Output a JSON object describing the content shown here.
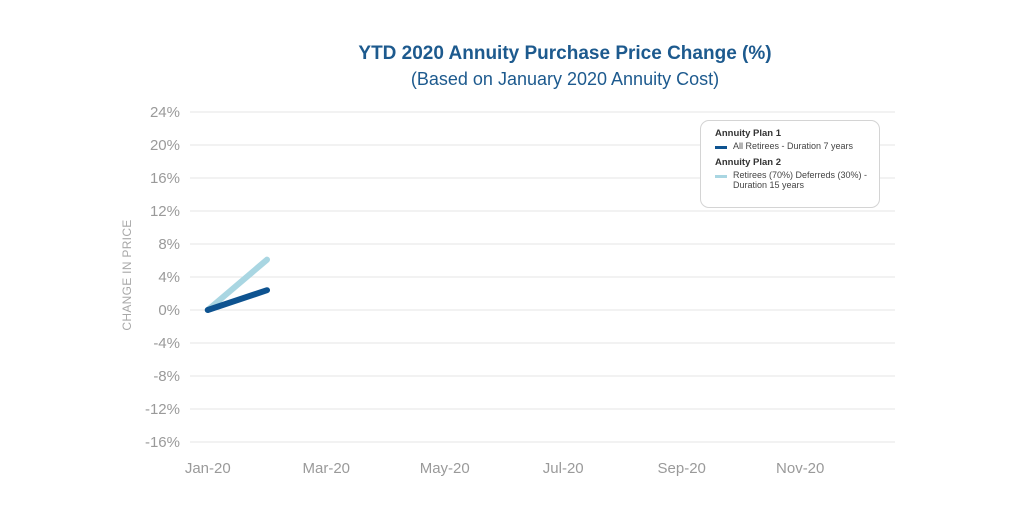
{
  "chart_data": {
    "type": "line",
    "title": "YTD 2020 Annuity Purchase Price Change (%)",
    "subtitle": "(Based on January 2020 Annuity Cost)",
    "ylabel": "CHANGE IN PRICE",
    "xlabel": "",
    "x_tick_labels": [
      "Jan-20",
      "Mar-20",
      "May-20",
      "Jul-20",
      "Sep-20",
      "Nov-20"
    ],
    "x_tick_index": [
      0,
      2,
      4,
      6,
      8,
      10
    ],
    "xlim": [
      -0.3,
      11.6
    ],
    "ylim": [
      -16,
      24
    ],
    "yticks": [
      24,
      20,
      16,
      12,
      8,
      4,
      0,
      -4,
      -8,
      -12,
      -16
    ],
    "ytick_labels": [
      "24%",
      "20%",
      "16%",
      "12%",
      "8%",
      "4%",
      "0%",
      "-4%",
      "-8%",
      "-12%",
      "-16%"
    ],
    "grid": true,
    "legend_position": "top-right",
    "series": [
      {
        "name": "All Retirees - Duration 7 years",
        "group": "Annuity Plan 1",
        "color": "#0e5390",
        "x": [
          0,
          1
        ],
        "values": [
          0,
          2.4
        ]
      },
      {
        "name": "Retirees (70%) Deferreds (30%) - Duration 15 years",
        "group": "Annuity Plan 2",
        "color": "#a9d6e2",
        "x": [
          0,
          1
        ],
        "values": [
          0,
          6.1
        ]
      }
    ]
  },
  "legend": {
    "group1": "Annuity Plan 1",
    "item1": "All Retirees - Duration 7 years",
    "group2": "Annuity Plan 2",
    "item2": "Retirees (70%) Deferreds (30%) - Duration 15 years"
  }
}
